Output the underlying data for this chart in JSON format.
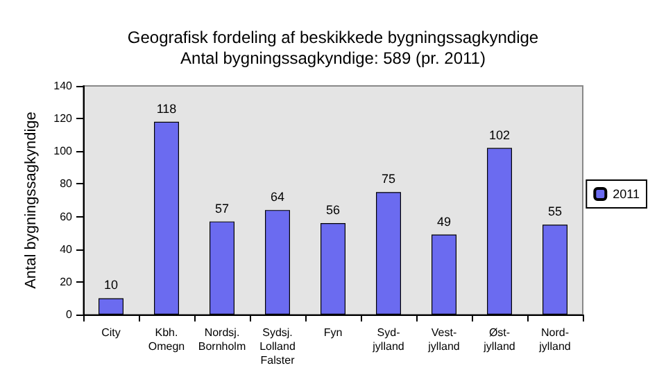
{
  "chart_data": {
    "type": "bar",
    "title": "Geografisk fordeling af beskikkede bygningssagkyndige",
    "subtitle": "Antal bygningssagkyndige: 589 (pr. 2011)",
    "ylabel": "Antal bygningssagkyndige",
    "categories": [
      "City",
      "Kbh.\nOmegn",
      "Nordsj.\nBornholm",
      "Sydsj.\nLolland\nFalster",
      "Fyn",
      "Syd-\njylland",
      "Vest-\njylland",
      "Øst-\njylland",
      "Nord-\njylland"
    ],
    "series": [
      {
        "name": "2011",
        "color": "#6b6bf0",
        "values": [
          10,
          118,
          57,
          64,
          56,
          75,
          49,
          102,
          55
        ]
      }
    ],
    "ylim": [
      0,
      140
    ],
    "yticks": [
      0,
      20,
      40,
      60,
      80,
      100,
      120,
      140
    ],
    "grid": false,
    "legend": "right",
    "data_labels": true
  }
}
